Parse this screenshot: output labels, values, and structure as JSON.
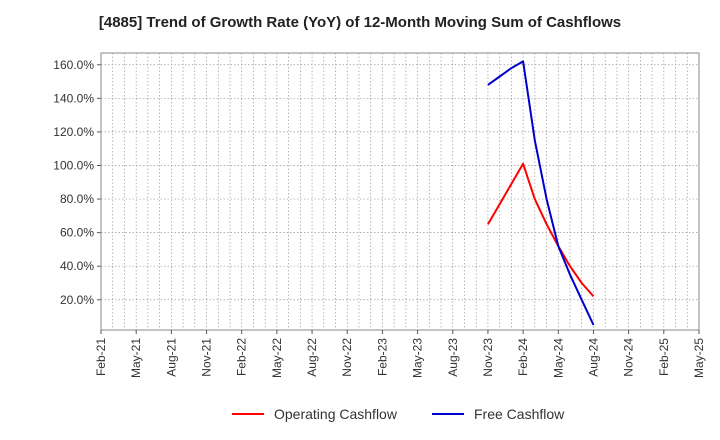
{
  "chart_data": {
    "type": "line",
    "title": "[4885]  Trend of Growth Rate (YoY) of 12-Month Moving Sum of Cashflows",
    "xlabel": "",
    "ylabel": "",
    "x": [
      "Feb-21",
      "May-21",
      "Aug-21",
      "Nov-21",
      "Feb-22",
      "May-22",
      "Aug-22",
      "Nov-22",
      "Feb-23",
      "May-23",
      "Aug-23",
      "Nov-23",
      "Feb-24",
      "May-24",
      "Aug-24",
      "Nov-24",
      "Feb-25",
      "May-25"
    ],
    "yticks": [
      "20.0%",
      "40.0%",
      "60.0%",
      "80.0%",
      "100.0%",
      "120.0%",
      "140.0%",
      "160.0%"
    ],
    "ylim": [
      2,
      167
    ],
    "grid": true,
    "legend_position": "bottom",
    "series": [
      {
        "name": "Operating Cashflow",
        "color": "#ff0000",
        "points": [
          {
            "x": "Nov-23",
            "y": 65
          },
          {
            "x": "Dec-23",
            "y": 77
          },
          {
            "x": "Jan-24",
            "y": 89
          },
          {
            "x": "Feb-24",
            "y": 101
          },
          {
            "x": "Mar-24",
            "y": 80
          },
          {
            "x": "Apr-24",
            "y": 65
          },
          {
            "x": "May-24",
            "y": 52
          },
          {
            "x": "Jun-24",
            "y": 40
          },
          {
            "x": "Jul-24",
            "y": 30
          },
          {
            "x": "Aug-24",
            "y": 22
          }
        ]
      },
      {
        "name": "Free Cashflow",
        "color": "#0000cc",
        "points": [
          {
            "x": "Nov-23",
            "y": 148
          },
          {
            "x": "Dec-23",
            "y": 153
          },
          {
            "x": "Jan-24",
            "y": 158
          },
          {
            "x": "Feb-24",
            "y": 162
          },
          {
            "x": "Mar-24",
            "y": 115
          },
          {
            "x": "Apr-24",
            "y": 80
          },
          {
            "x": "May-24",
            "y": 52
          },
          {
            "x": "Jun-24",
            "y": 35
          },
          {
            "x": "Jul-24",
            "y": 20
          },
          {
            "x": "Aug-24",
            "y": 5
          }
        ]
      }
    ]
  }
}
